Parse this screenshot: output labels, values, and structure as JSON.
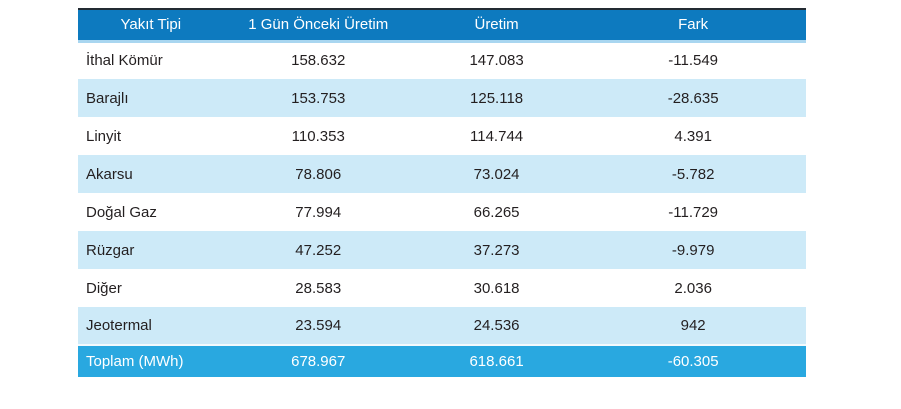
{
  "colors": {
    "header_bg": "#0d7abf",
    "header_underline": "#a9d6f0",
    "top_border": "#232b33",
    "row_alt": "#cdeaf8",
    "total_bg": "#29a8e0",
    "text": "#231f20",
    "white": "#ffffff"
  },
  "table": {
    "columns": {
      "fuel": "Yakıt Tipi",
      "prev": "1 Gün Önceki Üretim",
      "current": "Üretim",
      "diff": "Fark"
    },
    "rows": [
      {
        "fuel": "İthal Kömür",
        "prev": "158.632",
        "current": "147.083",
        "diff": "-11.549"
      },
      {
        "fuel": "Barajlı",
        "prev": "153.753",
        "current": "125.118",
        "diff": "-28.635"
      },
      {
        "fuel": "Linyit",
        "prev": "110.353",
        "current": "114.744",
        "diff": "4.391"
      },
      {
        "fuel": "Akarsu",
        "prev": "78.806",
        "current": "73.024",
        "diff": "-5.782"
      },
      {
        "fuel": "Doğal Gaz",
        "prev": "77.994",
        "current": "66.265",
        "diff": "-11.729"
      },
      {
        "fuel": "Rüzgar",
        "prev": "47.252",
        "current": "37.273",
        "diff": "-9.979"
      },
      {
        "fuel": "Diğer",
        "prev": "28.583",
        "current": "30.618",
        "diff": "2.036"
      },
      {
        "fuel": "Jeotermal",
        "prev": "23.594",
        "current": "24.536",
        "diff": "942"
      }
    ],
    "total": {
      "fuel": "Toplam (MWh)",
      "prev": "678.967",
      "current": "618.661",
      "diff": "-60.305"
    }
  },
  "chart_data": {
    "type": "table",
    "title": "",
    "columns": [
      "Yakıt Tipi",
      "1 Gün Önceki Üretim",
      "Üretim",
      "Fark"
    ],
    "categories": [
      "İthal Kömür",
      "Barajlı",
      "Linyit",
      "Akarsu",
      "Doğal Gaz",
      "Rüzgar",
      "Diğer",
      "Jeotermal"
    ],
    "series": [
      {
        "name": "1 Gün Önceki Üretim",
        "values": [
          158632,
          153753,
          110353,
          78806,
          77994,
          47252,
          28583,
          23594
        ]
      },
      {
        "name": "Üretim",
        "values": [
          147083,
          125118,
          114744,
          73024,
          66265,
          37273,
          30618,
          24536
        ]
      },
      {
        "name": "Fark",
        "values": [
          -11549,
          -28635,
          4391,
          -5782,
          -11729,
          -9979,
          2036,
          942
        ]
      }
    ],
    "total_row": {
      "label": "Toplam (MWh)",
      "values": [
        678967,
        618661,
        -60305
      ]
    },
    "unit": "MWh"
  }
}
